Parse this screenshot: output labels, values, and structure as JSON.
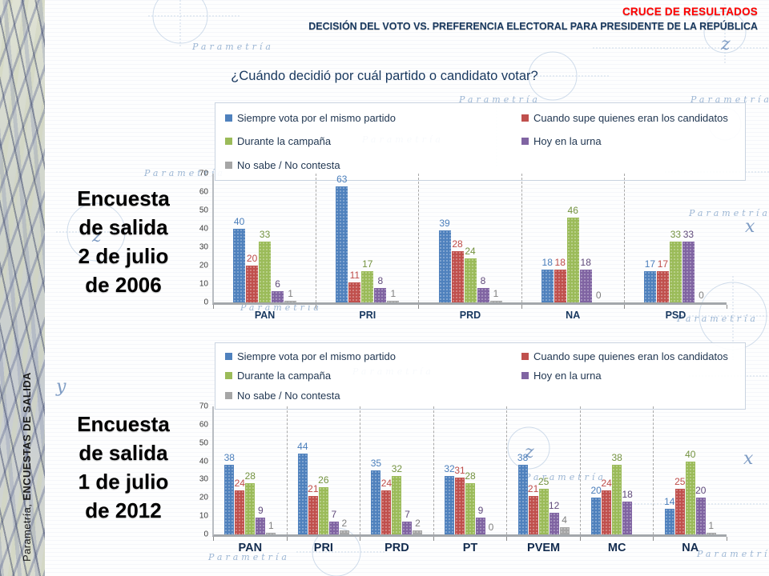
{
  "header": {
    "kicker": "CRUCE DE RESULTADOS",
    "subtitle": "DECISIÓN DEL VOTO VS. PREFERENCIA ELECTORAL PARA PRESIDENTE DE LA REPÚBLICA"
  },
  "question": "¿Cuándo decidió por cuál partido o candidato votar?",
  "sidebar": {
    "brand_regular": "Parametría, ",
    "brand_bold": "ENCUESTAS DE SALIDA"
  },
  "watermark": {
    "brand": "Parametría",
    "letters": [
      "x",
      "y",
      "z"
    ]
  },
  "colors": {
    "accent_red": "#ff0000",
    "title_navy": "#17375e",
    "axis_gray": "#a3a7ab"
  },
  "legend": {
    "items": [
      {
        "label": "Siempre vota por el mismo partido",
        "color": "#4f81bd"
      },
      {
        "label": "Cuando supe quienes eran los candidatos",
        "color": "#c0504d"
      },
      {
        "label": "Durante la campaña",
        "color": "#9bbb59"
      },
      {
        "label": "Hoy en la urna",
        "color": "#8064a2"
      },
      {
        "label": "No sabe / No contesta",
        "color": "#a6a6a6"
      }
    ]
  },
  "chart_data": [
    {
      "type": "bar",
      "title": "Encuesta de salida 2 de julio de 2006",
      "side_label_lines": [
        "Encuesta",
        "de salida",
        "2 de julio",
        "de 2006"
      ],
      "categories": [
        "PAN",
        "PRI",
        "PRD",
        "NA",
        "PSD"
      ],
      "series": [
        {
          "name": "Siempre vota por el mismo partido",
          "color": "#4f81bd",
          "label_color": "#4a7ebb",
          "values": [
            40,
            63,
            39,
            18,
            17
          ]
        },
        {
          "name": "Cuando supe quienes eran los candidatos",
          "color": "#c0504d",
          "label_color": "#be4b48",
          "values": [
            20,
            11,
            28,
            18,
            17
          ]
        },
        {
          "name": "Durante la campaña",
          "color": "#9bbb59",
          "label_color": "#73923f",
          "values": [
            33,
            17,
            24,
            46,
            33
          ]
        },
        {
          "name": "Hoy en la urna",
          "color": "#8064a2",
          "label_color": "#5f497a",
          "values": [
            6,
            8,
            8,
            18,
            33
          ]
        },
        {
          "name": "No sabe / No contesta",
          "color": "#a6a6a6",
          "label_color": "#7f7f7f",
          "values": [
            1,
            1,
            1,
            0,
            0
          ]
        }
      ],
      "ylim": [
        0,
        70
      ],
      "yticks": [
        0,
        10,
        20,
        30,
        40,
        50,
        60,
        70
      ],
      "legend_position": "top",
      "grid": false
    },
    {
      "type": "bar",
      "title": "Encuesta de salida 1 de julio de 2012",
      "side_label_lines": [
        "Encuesta",
        "de salida",
        "1 de julio",
        "de 2012"
      ],
      "categories": [
        "PAN",
        "PRI",
        "PRD",
        "PT",
        "PVEM",
        "MC",
        "NA"
      ],
      "series": [
        {
          "name": "Siempre vota por el mismo partido",
          "color": "#4f81bd",
          "label_color": "#4a7ebb",
          "values": [
            38,
            44,
            35,
            32,
            38,
            20,
            14
          ]
        },
        {
          "name": "Cuando supe quienes eran los candidatos",
          "color": "#c0504d",
          "label_color": "#be4b48",
          "values": [
            24,
            21,
            24,
            31,
            21,
            24,
            25
          ]
        },
        {
          "name": "Durante la campaña",
          "color": "#9bbb59",
          "label_color": "#73923f",
          "values": [
            28,
            26,
            32,
            28,
            25,
            38,
            40
          ]
        },
        {
          "name": "Hoy en la urna",
          "color": "#8064a2",
          "label_color": "#5f497a",
          "values": [
            9,
            7,
            7,
            9,
            12,
            18,
            20
          ]
        },
        {
          "name": "No sabe / No contesta",
          "color": "#a6a6a6",
          "label_color": "#7f7f7f",
          "values": [
            1,
            2,
            2,
            0,
            4,
            null,
            1
          ]
        }
      ],
      "ylim": [
        0,
        70
      ],
      "yticks": [
        0,
        10,
        20,
        30,
        40,
        50,
        60,
        70
      ],
      "legend_position": "top",
      "grid": false
    }
  ]
}
